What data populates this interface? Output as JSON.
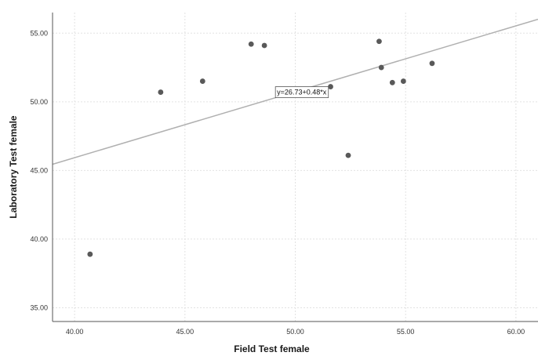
{
  "chart_data": {
    "type": "scatter",
    "title": "",
    "xlabel": "Field Test female",
    "ylabel": "Laboratory Test female",
    "xlim": [
      39.0,
      61.0
    ],
    "ylim": [
      34.0,
      56.5
    ],
    "xticks": [
      "40.00",
      "45.00",
      "50.00",
      "55.00",
      "60.00"
    ],
    "xtick_values": [
      40,
      45,
      50,
      55,
      60
    ],
    "yticks": [
      "35.00",
      "40.00",
      "45.00",
      "50.00",
      "55.00"
    ],
    "ytick_values": [
      35,
      40,
      45,
      50,
      55
    ],
    "grid": true,
    "points": [
      {
        "x": 40.7,
        "y": 38.9
      },
      {
        "x": 43.9,
        "y": 50.7
      },
      {
        "x": 45.8,
        "y": 51.5
      },
      {
        "x": 48.0,
        "y": 54.2
      },
      {
        "x": 48.6,
        "y": 54.1
      },
      {
        "x": 51.6,
        "y": 51.1
      },
      {
        "x": 52.4,
        "y": 46.1
      },
      {
        "x": 53.8,
        "y": 54.4
      },
      {
        "x": 53.9,
        "y": 52.5
      },
      {
        "x": 54.4,
        "y": 51.4
      },
      {
        "x": 54.9,
        "y": 51.5
      },
      {
        "x": 56.2,
        "y": 52.8
      }
    ],
    "fit_line": {
      "intercept": 26.73,
      "slope": 0.48
    },
    "fit_label": "y=26.73+0.48*x",
    "fit_label_anchor": {
      "x": 49.1,
      "y": 50.7
    },
    "colors": {
      "points": "#595959",
      "fit_line": "#b0b0b0",
      "grid": "#e2e2e2",
      "axis": "#555555"
    }
  }
}
